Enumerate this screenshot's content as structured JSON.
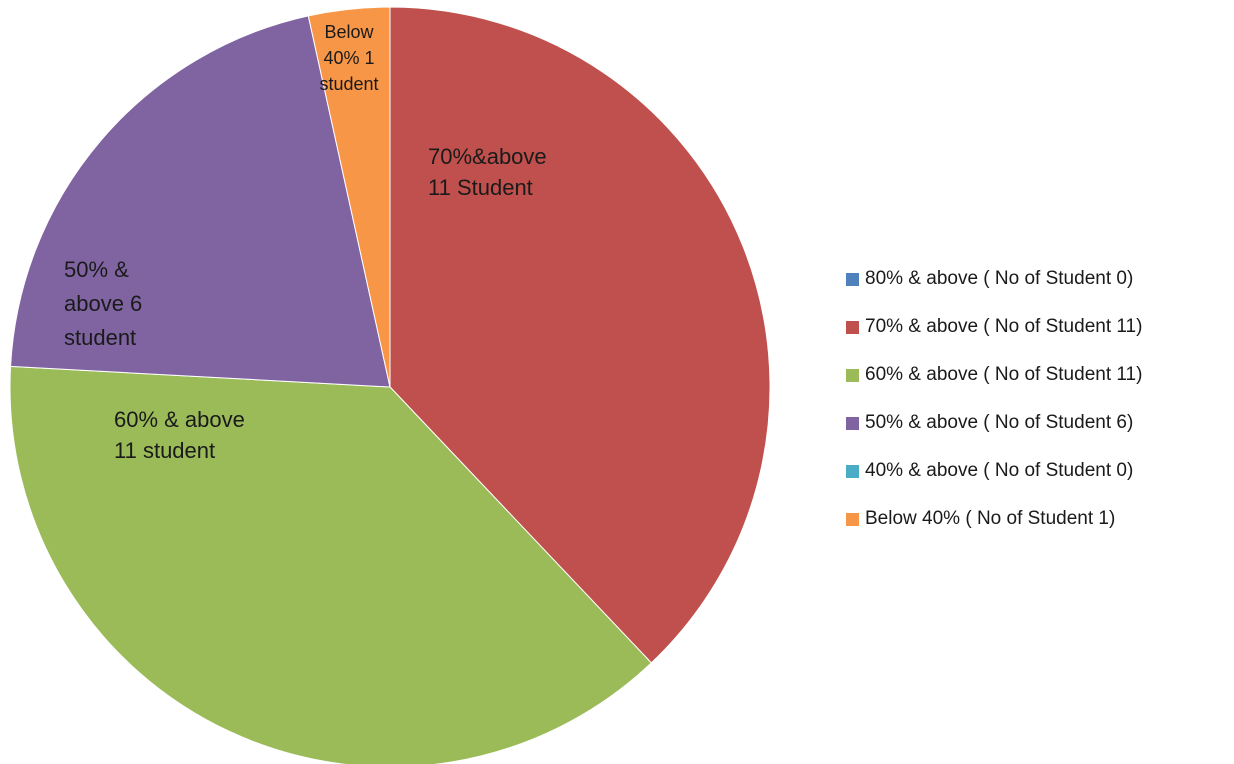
{
  "chart_data": {
    "type": "pie",
    "title": "",
    "start_angle_deg": 0,
    "direction": "clockwise",
    "slices": [
      {
        "label": "80% & above ( No of Student 0)",
        "value": 0,
        "color": "#4F81BD",
        "data_label": []
      },
      {
        "label": "70% & above ( No of Student 11)",
        "value": 11,
        "color": "#C0504D",
        "data_label": [
          "70%&above",
          "11 Student"
        ]
      },
      {
        "label": "60% & above ( No of Student 11)",
        "value": 11,
        "color": "#9BBB59",
        "data_label": [
          "60% & above",
          "11 student"
        ]
      },
      {
        "label": "50% & above ( No of Student 6)",
        "value": 6,
        "color": "#8064A2",
        "data_label": [
          "50% &",
          "above 6",
          "student"
        ]
      },
      {
        "label": "40% & above ( No of Student 0)",
        "value": 0,
        "color": "#4BACC6",
        "data_label": []
      },
      {
        "label": "Below 40% ( No of Student 1)",
        "value": 1,
        "color": "#F79646",
        "data_label": [
          "Below",
          "40% 1",
          "student"
        ]
      }
    ],
    "legend_position": "right"
  }
}
